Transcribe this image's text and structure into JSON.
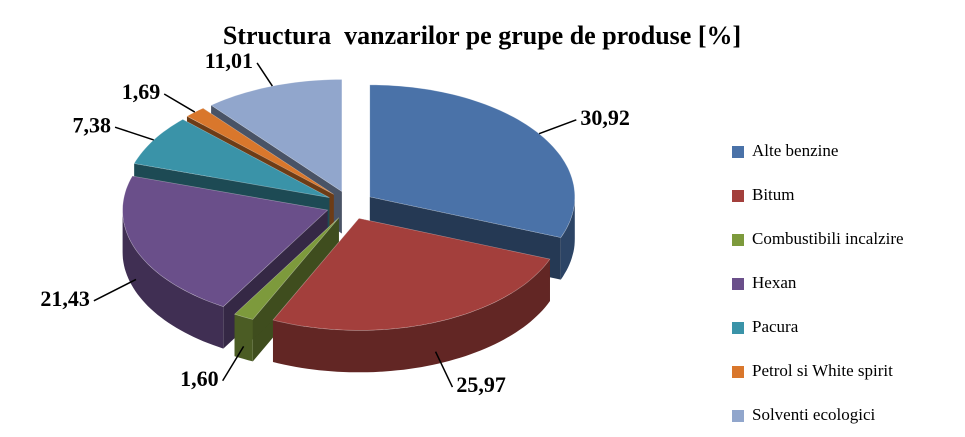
{
  "chart_data": {
    "type": "pie",
    "title": "Structura  vanzarilor pe grupe de produse [%]",
    "categories": [
      "Alte benzine",
      "Bitum",
      "Combustibili incalzire",
      "Hexan",
      "Pacura",
      "Petrol si White spirit",
      "Solventi ecologici"
    ],
    "values": [
      30.92,
      25.97,
      1.6,
      21.43,
      7.38,
      1.69,
      11.01
    ],
    "value_labels": [
      "30,92",
      "25,97",
      "1,60",
      "21,43",
      "7,38",
      "1,69",
      "11,01"
    ],
    "colors": [
      "#4a72a8",
      "#a33f3c",
      "#7d9a3c",
      "#6a4f8a",
      "#3a93a8",
      "#d9772c",
      "#91a6cc"
    ],
    "legend": "right"
  }
}
